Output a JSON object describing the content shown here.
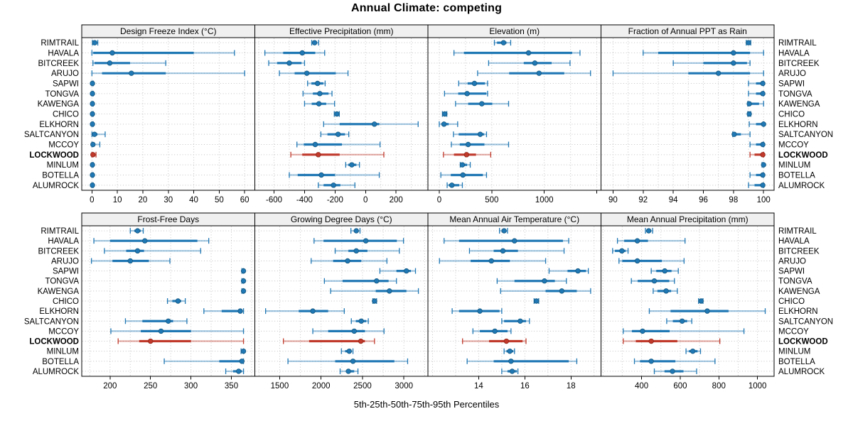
{
  "title": "Annual Climate: competing",
  "footer": "5th-25th-50th-75th-95th Percentiles",
  "highlight_site": "LOCKWOOD",
  "colors": {
    "blue": "#1f77b4",
    "blue_dark": "#15587f",
    "red": "#c0392b",
    "red_dark": "#8f2417",
    "strip_bg": "#f0f0f0",
    "panel_border": "#000000",
    "grid": "#c4c4c4",
    "text": "#000000"
  },
  "sites": [
    "RIMTRAIL",
    "HAVALA",
    "BITCREEK",
    "ARUJO",
    "SAPWI",
    "TONGVA",
    "KAWENGA",
    "CHICO",
    "ELKHORN",
    "SALTCANYON",
    "MCCOY",
    "LOCKWOOD",
    "MINLUM",
    "BOTELLA",
    "ALUMROCK"
  ],
  "chart_data": {
    "type": "trellis-dotplot",
    "percentiles": [
      5,
      25,
      50,
      75,
      95
    ],
    "note": "values arrays are [5th,25th,50th,75th,95th] per site, in sites order",
    "panels": [
      {
        "title": "Design Freeze Index (°C)",
        "row": 0,
        "col": 0,
        "xlim": [
          -4,
          64
        ],
        "ticks": [
          0,
          10,
          20,
          30,
          40,
          50,
          60
        ],
        "grid_step": 10,
        "extra_tick_marks": [],
        "values": [
          [
            0.2,
            0.6,
            1.1,
            1.7,
            2.3
          ],
          [
            0,
            0.5,
            8,
            40,
            56
          ],
          [
            0.4,
            1,
            7,
            15,
            29
          ],
          [
            0,
            4,
            15.5,
            29,
            60
          ],
          [
            0,
            0.1,
            0.2,
            0.3,
            0.5
          ],
          [
            0,
            0.1,
            0.2,
            0.3,
            0.5
          ],
          [
            0,
            0.1,
            0.2,
            0.3,
            0.5
          ],
          [
            0,
            0.1,
            0.2,
            0.3,
            0.5
          ],
          [
            0,
            0.1,
            0.2,
            0.3,
            0.5
          ],
          [
            0,
            0.3,
            1,
            2.2,
            5.2
          ],
          [
            0,
            0.1,
            0.4,
            1,
            3.1
          ],
          [
            0,
            0.1,
            0.4,
            0.8,
            1.6
          ],
          [
            0,
            0.1,
            0.2,
            0.3,
            0.5
          ],
          [
            0,
            0.1,
            0.2,
            0.3,
            0.5
          ],
          [
            0,
            0.1,
            0.2,
            0.3,
            0.5
          ]
        ]
      },
      {
        "title": "Effective Precipitation (mm)",
        "row": 0,
        "col": 1,
        "xlim": [
          -726,
          409
        ],
        "ticks": [
          -600,
          -400,
          -200,
          0,
          200
        ],
        "grid_step": 100,
        "extra_tick_marks": [],
        "values": [
          [
            -353,
            -344,
            -334,
            -318,
            -308
          ],
          [
            -660,
            -540,
            -415,
            -330,
            -268
          ],
          [
            -635,
            -580,
            -500,
            -420,
            -400
          ],
          [
            -565,
            -465,
            -385,
            -195,
            -115
          ],
          [
            -380,
            -355,
            -315,
            -277,
            -265
          ],
          [
            -410,
            -345,
            -300,
            -243,
            -220
          ],
          [
            -400,
            -353,
            -306,
            -258,
            -203
          ],
          [
            -205,
            -196,
            -188,
            -180,
            -172
          ],
          [
            -275,
            -170,
            58,
            90,
            345
          ],
          [
            -293,
            -250,
            -180,
            -135,
            -110
          ],
          [
            -450,
            -405,
            -330,
            -155,
            95
          ],
          [
            -490,
            -415,
            -310,
            -170,
            120
          ],
          [
            -130,
            -113,
            -90,
            -60,
            -40
          ],
          [
            -500,
            -445,
            -290,
            -200,
            90
          ],
          [
            -310,
            -275,
            -210,
            -165,
            -70
          ]
        ]
      },
      {
        "title": "Elevation (m)",
        "row": 0,
        "col": 2,
        "xlim": [
          -108,
          1540
        ],
        "ticks": [
          0,
          500,
          1000
        ],
        "grid_step": 250,
        "extra_tick_marks": [
          1500
        ],
        "values": [
          [
            525,
            550,
            612,
            640,
            680
          ],
          [
            140,
            235,
            850,
            1265,
            1340
          ],
          [
            470,
            805,
            910,
            1070,
            1245
          ],
          [
            365,
            665,
            950,
            1190,
            1440
          ],
          [
            185,
            270,
            335,
            435,
            460
          ],
          [
            50,
            180,
            265,
            448,
            460
          ],
          [
            155,
            275,
            405,
            505,
            660
          ],
          [
            30,
            42,
            52,
            62,
            72
          ],
          [
            0,
            20,
            45,
            90,
            175
          ],
          [
            135,
            185,
            390,
            428,
            450
          ],
          [
            115,
            195,
            275,
            430,
            660
          ],
          [
            40,
            140,
            260,
            350,
            490
          ],
          [
            200,
            210,
            220,
            265,
            295
          ],
          [
            15,
            110,
            225,
            415,
            450
          ],
          [
            75,
            90,
            120,
            190,
            220
          ]
        ]
      },
      {
        "title": "Fraction of Annual PPT as Rain",
        "row": 0,
        "col": 3,
        "xlim": [
          89.2,
          100.7
        ],
        "ticks": [
          90,
          92,
          94,
          96,
          98,
          100
        ],
        "grid_step": 1,
        "extra_tick_marks": [],
        "values": [
          [
            98.85,
            98.95,
            99.0,
            99.05,
            99.15
          ],
          [
            92,
            93,
            98,
            99.1,
            100
          ],
          [
            94,
            96,
            98,
            98.9,
            99.1
          ],
          [
            90,
            95,
            97,
            99.1,
            100
          ],
          [
            99,
            99.5,
            99.95,
            100,
            100
          ],
          [
            99,
            99.5,
            99.95,
            100,
            100
          ],
          [
            98.95,
            99,
            99.05,
            99.7,
            100
          ],
          [
            98.95,
            99,
            99.05,
            99.1,
            99.15
          ],
          [
            99.05,
            99.5,
            100,
            100,
            100
          ],
          [
            97.95,
            98,
            98.05,
            98.5,
            99.1
          ],
          [
            99.1,
            99.5,
            99.95,
            100,
            100
          ],
          [
            99.1,
            99.4,
            99.95,
            100,
            100
          ],
          [
            99.9,
            99.95,
            100,
            100,
            100
          ],
          [
            99.1,
            99.5,
            99.95,
            100,
            100
          ],
          [
            99,
            99.4,
            99.95,
            100,
            100
          ]
        ]
      },
      {
        "title": "Frost-Free Days",
        "row": 1,
        "col": 0,
        "xlim": [
          165,
          379
        ],
        "ticks": [
          200,
          250,
          300,
          350
        ],
        "grid_step": 25,
        "extra_tick_marks": [],
        "values": [
          [
            225,
            230,
            234,
            238,
            241
          ],
          [
            180,
            200,
            243,
            308,
            322
          ],
          [
            193,
            220,
            234,
            242,
            312
          ],
          [
            177,
            203,
            225,
            248,
            274
          ],
          [
            363,
            364,
            365,
            365,
            365
          ],
          [
            363,
            364,
            365,
            365,
            365
          ],
          [
            363,
            364,
            365,
            365,
            365
          ],
          [
            271,
            277,
            284,
            288,
            293
          ],
          [
            316,
            338,
            361,
            364,
            365
          ],
          [
            219,
            240,
            272,
            278,
            295
          ],
          [
            201,
            238,
            263,
            300,
            365
          ],
          [
            210,
            236,
            250,
            300,
            365
          ],
          [
            362,
            364,
            365,
            365,
            365
          ],
          [
            267,
            335,
            363,
            365,
            365
          ],
          [
            343,
            352,
            359,
            363,
            365
          ]
        ]
      },
      {
        "title": "Growing Degree Days (°C)",
        "row": 1,
        "col": 1,
        "xlim": [
          1200,
          3290
        ],
        "ticks": [
          1500,
          2000,
          2500,
          3000
        ],
        "grid_step": 250,
        "extra_tick_marks": [],
        "values": [
          [
            2360,
            2400,
            2425,
            2450,
            2470
          ],
          [
            1915,
            2030,
            2540,
            2915,
            2995
          ],
          [
            2170,
            2330,
            2425,
            2560,
            2945
          ],
          [
            1880,
            2145,
            2320,
            2485,
            2795
          ],
          [
            2710,
            2910,
            3030,
            3085,
            3140
          ],
          [
            2040,
            2260,
            2670,
            2815,
            2910
          ],
          [
            2115,
            2660,
            2825,
            3030,
            3175
          ],
          [
            2625,
            2635,
            2645,
            2655,
            2670
          ],
          [
            1330,
            1730,
            1900,
            2085,
            2280
          ],
          [
            2365,
            2420,
            2485,
            2545,
            2570
          ],
          [
            1900,
            2085,
            2400,
            2530,
            2760
          ],
          [
            1545,
            1855,
            2480,
            2530,
            2645
          ],
          [
            2245,
            2290,
            2340,
            2365,
            2385
          ],
          [
            1600,
            2170,
            2385,
            2885,
            3045
          ],
          [
            2230,
            2300,
            2330,
            2400,
            2445
          ]
        ]
      },
      {
        "title": "Mean Annual Air Temperature (°C)",
        "row": 1,
        "col": 2,
        "xlim": [
          11.8,
          19.3
        ],
        "ticks": [
          14,
          16,
          18
        ],
        "grid_step": 1,
        "extra_tick_marks": [],
        "values": [
          [
            14.9,
            15.0,
            15.1,
            15.2,
            15.25
          ],
          [
            12.5,
            13.15,
            15.55,
            17.65,
            17.9
          ],
          [
            13.6,
            14.65,
            15.05,
            15.7,
            17.7
          ],
          [
            12.3,
            13.65,
            14.55,
            15.35,
            16.9
          ],
          [
            17.05,
            17.85,
            18.3,
            18.65,
            18.75
          ],
          [
            14.8,
            15.55,
            16.85,
            17.3,
            17.8
          ],
          [
            14.95,
            16.9,
            17.6,
            18.25,
            18.85
          ],
          [
            16.4,
            16.45,
            16.5,
            16.55,
            16.6
          ],
          [
            12.85,
            13.15,
            14.05,
            14.9,
            15.0
          ],
          [
            15.0,
            15.1,
            15.8,
            16.05,
            16.2
          ],
          [
            13.75,
            14.05,
            14.7,
            15.25,
            15.4
          ],
          [
            13.3,
            14.45,
            15.2,
            15.9,
            16.05
          ],
          [
            15.1,
            15.2,
            15.35,
            15.5,
            15.55
          ],
          [
            13.5,
            14.65,
            15.4,
            17.9,
            18.25
          ],
          [
            15.0,
            15.25,
            15.45,
            15.65,
            15.7
          ]
        ]
      },
      {
        "title": "Mean Annual Precipitation (mm)",
        "row": 1,
        "col": 3,
        "xlim": [
          190,
          1086
        ],
        "ticks": [
          400,
          600,
          800,
          1000
        ],
        "grid_step": 100,
        "extra_tick_marks": [],
        "values": [
          [
            420,
            430,
            437,
            448,
            457
          ],
          [
            275,
            310,
            378,
            433,
            625
          ],
          [
            250,
            262,
            298,
            318,
            330
          ],
          [
            283,
            300,
            378,
            505,
            620
          ],
          [
            450,
            476,
            520,
            555,
            590
          ],
          [
            347,
            380,
            466,
            543,
            570
          ],
          [
            460,
            482,
            527,
            553,
            585
          ],
          [
            695,
            702,
            708,
            713,
            718
          ],
          [
            440,
            550,
            740,
            850,
            1040
          ],
          [
            530,
            562,
            610,
            636,
            660
          ],
          [
            305,
            350,
            405,
            545,
            930
          ],
          [
            305,
            370,
            450,
            585,
            805
          ],
          [
            630,
            645,
            665,
            690,
            705
          ],
          [
            363,
            392,
            450,
            575,
            780
          ],
          [
            466,
            519,
            560,
            617,
            685
          ]
        ]
      }
    ]
  }
}
